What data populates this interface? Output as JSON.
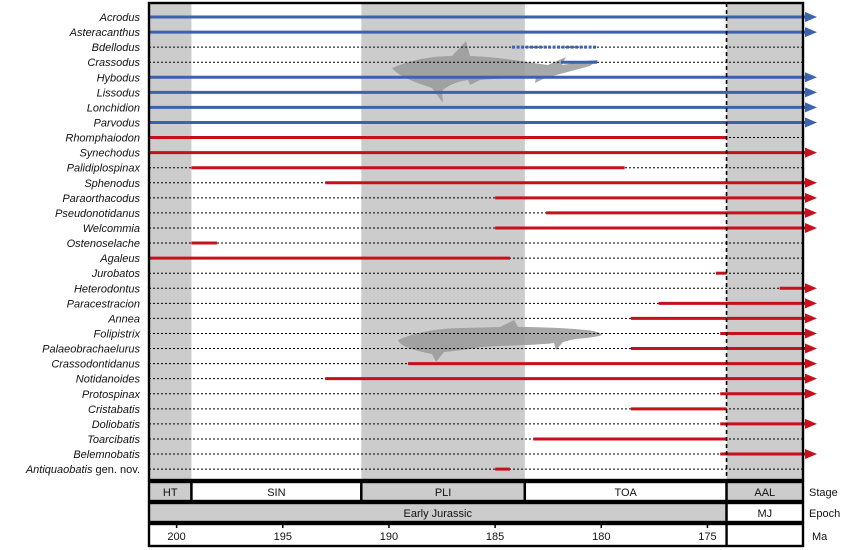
{
  "chart_data": {
    "type": "range",
    "title": "",
    "xlabel": "",
    "ylabel": "",
    "x_axis": {
      "label": "Ma",
      "range": [
        201.3,
        170.5
      ],
      "ticks": [
        200,
        195,
        190,
        185,
        180,
        175
      ],
      "reversed": true
    },
    "stage_row_label": "Stage",
    "epoch_row_label": "Epoch",
    "stages": [
      {
        "name": "HT",
        "start": 201.3,
        "end": 199.3,
        "shaded": true
      },
      {
        "name": "SIN",
        "start": 199.3,
        "end": 191.3,
        "shaded": false
      },
      {
        "name": "PLI",
        "start": 191.3,
        "end": 183.6,
        "shaded": true
      },
      {
        "name": "TOA",
        "start": 183.6,
        "end": 174.1,
        "shaded": false
      },
      {
        "name": "AAL",
        "start": 174.1,
        "end": 170.5,
        "shaded": true
      }
    ],
    "epochs": [
      {
        "name": "Early Jurassic",
        "start": 201.3,
        "end": 174.1,
        "shaded": true
      },
      {
        "name": "MJ",
        "start": 174.1,
        "end": 170.5,
        "shaded": false
      }
    ],
    "boundary_dashed_at": 174.1,
    "taxa": [
      {
        "name": "Acrodus",
        "group": "blue",
        "start": 201.3,
        "end": 170.5,
        "arrow": true
      },
      {
        "name": "Asteracanthus",
        "group": "blue",
        "start": 201.3,
        "end": 170.5,
        "arrow": true
      },
      {
        "name": "Bdellodus",
        "group": "blue",
        "start": 184.2,
        "end": 180.2,
        "arrow": false,
        "uncertain": true
      },
      {
        "name": "Crassodus",
        "group": "blue",
        "start": 181.9,
        "end": 180.2,
        "arrow": false
      },
      {
        "name": "Hybodus",
        "group": "blue",
        "start": 201.3,
        "end": 170.5,
        "arrow": true
      },
      {
        "name": "Lissodus",
        "group": "blue",
        "start": 201.3,
        "end": 170.5,
        "arrow": true
      },
      {
        "name": "Lonchidion",
        "group": "blue",
        "start": 201.3,
        "end": 170.5,
        "arrow": true
      },
      {
        "name": "Parvodus",
        "group": "blue",
        "start": 201.3,
        "end": 170.5,
        "arrow": true
      },
      {
        "name": "Rhomphaiodon",
        "group": "red",
        "start": 201.3,
        "end": 174.1,
        "arrow": false
      },
      {
        "name": "Synechodus",
        "group": "red",
        "start": 201.3,
        "end": 170.5,
        "arrow": true
      },
      {
        "name": "Palidiplospinax",
        "group": "red",
        "start": 199.3,
        "end": 178.9,
        "arrow": false
      },
      {
        "name": "Sphenodus",
        "group": "red",
        "start": 193.0,
        "end": 170.5,
        "arrow": true
      },
      {
        "name": "Paraorthacodus",
        "group": "red",
        "start": 185.0,
        "end": 170.5,
        "arrow": true
      },
      {
        "name": "Pseudonotidanus",
        "group": "red",
        "start": 182.6,
        "end": 170.5,
        "arrow": true
      },
      {
        "name": "Welcommia",
        "group": "red",
        "start": 185.0,
        "end": 170.5,
        "arrow": true
      },
      {
        "name": "Ostenoselache",
        "group": "red",
        "start": 199.3,
        "end": 198.1,
        "arrow": false
      },
      {
        "name": "Agaleus",
        "group": "red",
        "start": 201.3,
        "end": 184.3,
        "arrow": false
      },
      {
        "name": "Jurobatos",
        "group": "red",
        "start": 174.6,
        "end": 174.1,
        "arrow": false
      },
      {
        "name": "Heterodontus",
        "group": "red",
        "start": 171.6,
        "end": 170.5,
        "arrow": true
      },
      {
        "name": "Paracestracion",
        "group": "red",
        "start": 177.3,
        "end": 170.5,
        "arrow": true
      },
      {
        "name": "Annea",
        "group": "red",
        "start": 178.6,
        "end": 170.5,
        "arrow": true
      },
      {
        "name": "Folipistrix",
        "group": "red",
        "start": 174.4,
        "end": 170.5,
        "arrow": true
      },
      {
        "name": "Palaeobrachaelurus",
        "group": "red",
        "start": 178.6,
        "end": 170.5,
        "arrow": true
      },
      {
        "name": "Crassodontidanus",
        "group": "red",
        "start": 189.1,
        "end": 170.5,
        "arrow": true
      },
      {
        "name": "Notidanoides",
        "group": "red",
        "start": 193.0,
        "end": 170.5,
        "arrow": true
      },
      {
        "name": "Protospinax",
        "group": "red",
        "start": 174.4,
        "end": 170.5,
        "arrow": true
      },
      {
        "name": "Cristabatis",
        "group": "red",
        "start": 178.6,
        "end": 174.1,
        "arrow": false
      },
      {
        "name": "Doliobatis",
        "group": "red",
        "start": 174.4,
        "end": 170.5,
        "arrow": true
      },
      {
        "name": "Toarcibatis",
        "group": "red",
        "start": 183.2,
        "end": 174.1,
        "arrow": false
      },
      {
        "name": "Belemnobatis",
        "group": "red",
        "start": 174.4,
        "end": 170.5,
        "arrow": true
      },
      {
        "name": "Antiquaobatis",
        "name_suffix": "gen. nov.",
        "group": "red",
        "start": 185.0,
        "end": 184.3,
        "arrow": false
      }
    ],
    "colors": {
      "blue": "#3b62ad",
      "red": "#c8101d",
      "shade": "#cccccc",
      "silhouette": "#999999"
    },
    "silhouettes": [
      "shark-silhouette",
      "ray-silhouette"
    ]
  }
}
